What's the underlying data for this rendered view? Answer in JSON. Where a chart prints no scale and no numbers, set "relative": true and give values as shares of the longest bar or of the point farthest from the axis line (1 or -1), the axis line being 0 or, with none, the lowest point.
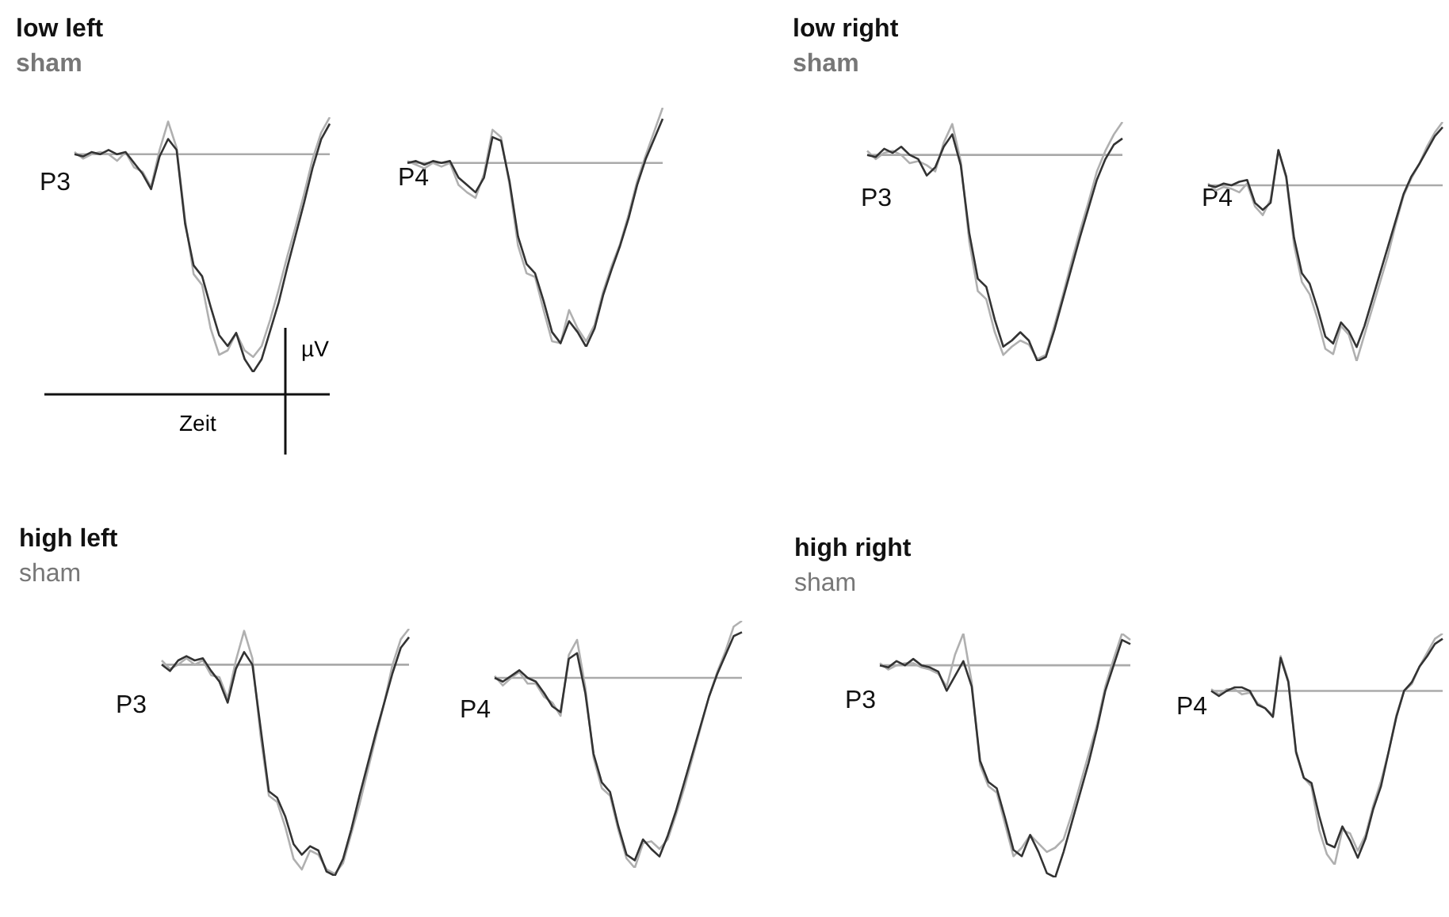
{
  "chart_data": [
    {
      "type": "line",
      "relative": true,
      "title": "low left",
      "subtitle": "sham",
      "xlabel": "Zeit",
      "ylabel": "µV",
      "annotations": [
        "P3"
      ],
      "categories": [
        null,
        null,
        null,
        null,
        null,
        null,
        null,
        null,
        null,
        null,
        null,
        null,
        null,
        null,
        null,
        null,
        null,
        null,
        null,
        null,
        null,
        null,
        null,
        null,
        null,
        null,
        null,
        null,
        null,
        null,
        null
      ],
      "series": [
        {
          "color": "#b0b0b0",
          "values": [
            0.01,
            -0.02,
            0,
            0.01,
            0,
            -0.03,
            0.01,
            -0.06,
            -0.08,
            -0.15,
            0.02,
            0.15,
            0.03,
            -0.3,
            -0.55,
            -0.6,
            -0.8,
            -0.92,
            -0.9,
            -0.82,
            -0.9,
            -0.93,
            -0.88,
            -0.76,
            -0.62,
            -0.47,
            -0.33,
            -0.18,
            -0.02,
            0.1,
            0.17
          ]
        },
        {
          "color": "#333333",
          "values": [
            0,
            -0.01,
            0.01,
            0,
            0.02,
            0,
            0.01,
            -0.04,
            -0.09,
            -0.16,
            -0.01,
            0.07,
            0.02,
            -0.32,
            -0.51,
            -0.56,
            -0.7,
            -0.83,
            -0.88,
            -0.82,
            -0.94,
            -1,
            -0.94,
            -0.81,
            -0.68,
            -0.52,
            -0.37,
            -0.22,
            -0.06,
            0.07,
            0.14
          ]
        }
      ]
    },
    {
      "type": "line",
      "relative": true,
      "annotations": [
        "P4"
      ],
      "categories": [
        null,
        null,
        null,
        null,
        null,
        null,
        null,
        null,
        null,
        null,
        null,
        null,
        null,
        null,
        null,
        null,
        null,
        null,
        null,
        null,
        null,
        null,
        null,
        null,
        null,
        null,
        null,
        null,
        null,
        null,
        null
      ],
      "series": [
        {
          "color": "#b0b0b0",
          "values": [
            0.01,
            -0.01,
            -0.03,
            0,
            -0.02,
            0,
            -0.12,
            -0.16,
            -0.19,
            -0.06,
            0.18,
            0.14,
            -0.12,
            -0.45,
            -0.6,
            -0.62,
            -0.8,
            -0.97,
            -0.98,
            -0.8,
            -0.9,
            -0.97,
            -0.88,
            -0.7,
            -0.56,
            -0.44,
            -0.28,
            -0.1,
            0.04,
            0.17,
            0.3
          ]
        },
        {
          "color": "#333333",
          "values": [
            0,
            0.01,
            -0.01,
            0.01,
            0,
            0.01,
            -0.08,
            -0.12,
            -0.16,
            -0.08,
            0.14,
            0.12,
            -0.1,
            -0.4,
            -0.55,
            -0.6,
            -0.75,
            -0.92,
            -0.98,
            -0.86,
            -0.92,
            -1,
            -0.9,
            -0.72,
            -0.58,
            -0.45,
            -0.3,
            -0.12,
            0.02,
            0.13,
            0.24
          ]
        }
      ]
    },
    {
      "type": "line",
      "relative": true,
      "title": "low right",
      "subtitle": "sham",
      "annotations": [
        "P3"
      ],
      "categories": [
        null,
        null,
        null,
        null,
        null,
        null,
        null,
        null,
        null,
        null,
        null,
        null,
        null,
        null,
        null,
        null,
        null,
        null,
        null,
        null,
        null,
        null,
        null,
        null,
        null,
        null,
        null,
        null,
        null,
        null,
        null
      ],
      "series": [
        {
          "color": "#b0b0b0",
          "values": [
            0.02,
            -0.02,
            0.01,
            0.02,
            0,
            -0.04,
            -0.03,
            -0.05,
            -0.08,
            0.06,
            0.15,
            -0.03,
            -0.42,
            -0.66,
            -0.7,
            -0.86,
            -0.97,
            -0.93,
            -0.9,
            -0.92,
            -0.99,
            -0.97,
            -0.83,
            -0.68,
            -0.52,
            -0.37,
            -0.23,
            -0.08,
            0.02,
            0.1,
            0.16
          ]
        },
        {
          "color": "#333333",
          "values": [
            0,
            -0.01,
            0.03,
            0.01,
            0.04,
            0,
            -0.02,
            -0.1,
            -0.06,
            0.04,
            0.1,
            -0.05,
            -0.38,
            -0.6,
            -0.64,
            -0.8,
            -0.93,
            -0.9,
            -0.86,
            -0.9,
            -1,
            -0.98,
            -0.85,
            -0.7,
            -0.55,
            -0.4,
            -0.26,
            -0.12,
            -0.02,
            0.05,
            0.08
          ]
        }
      ]
    },
    {
      "type": "line",
      "relative": true,
      "annotations": [
        "P4"
      ],
      "categories": [
        null,
        null,
        null,
        null,
        null,
        null,
        null,
        null,
        null,
        null,
        null,
        null,
        null,
        null,
        null,
        null,
        null,
        null,
        null,
        null,
        null,
        null,
        null,
        null,
        null,
        null,
        null,
        null,
        null,
        null,
        null
      ],
      "series": [
        {
          "color": "#b0b0b0",
          "values": [
            0.01,
            -0.03,
            -0.01,
            -0.02,
            -0.04,
            0.01,
            -0.12,
            -0.17,
            -0.08,
            0.2,
            0.04,
            -0.34,
            -0.55,
            -0.62,
            -0.76,
            -0.93,
            -0.96,
            -0.8,
            -0.85,
            -1,
            -0.85,
            -0.7,
            -0.55,
            -0.4,
            -0.22,
            -0.06,
            0.04,
            0.12,
            0.22,
            0.3,
            0.36
          ]
        },
        {
          "color": "#333333",
          "values": [
            0,
            -0.01,
            0.01,
            0,
            0.02,
            0.03,
            -0.1,
            -0.14,
            -0.1,
            0.2,
            0.05,
            -0.3,
            -0.5,
            -0.56,
            -0.7,
            -0.86,
            -0.9,
            -0.78,
            -0.83,
            -0.92,
            -0.8,
            -0.65,
            -0.5,
            -0.35,
            -0.2,
            -0.05,
            0.05,
            0.12,
            0.2,
            0.28,
            0.33
          ]
        }
      ]
    },
    {
      "type": "line",
      "relative": true,
      "title": "high left",
      "subtitle": "sham",
      "annotations": [
        "P3"
      ],
      "categories": [
        null,
        null,
        null,
        null,
        null,
        null,
        null,
        null,
        null,
        null,
        null,
        null,
        null,
        null,
        null,
        null,
        null,
        null,
        null,
        null,
        null,
        null,
        null,
        null,
        null,
        null,
        null,
        null,
        null,
        null,
        null
      ],
      "series": [
        {
          "color": "#b0b0b0",
          "values": [
            0.02,
            -0.02,
            0,
            0.03,
            0,
            0.02,
            -0.05,
            -0.06,
            -0.16,
            0.02,
            0.16,
            0.03,
            -0.34,
            -0.62,
            -0.65,
            -0.77,
            -0.92,
            -0.97,
            -0.88,
            -0.9,
            -0.97,
            -0.99,
            -0.94,
            -0.8,
            -0.66,
            -0.5,
            -0.34,
            -0.18,
            0,
            0.12,
            0.17
          ]
        },
        {
          "color": "#333333",
          "values": [
            0,
            -0.03,
            0.02,
            0.04,
            0.02,
            0.03,
            -0.03,
            -0.08,
            -0.18,
            -0.02,
            0.06,
            0,
            -0.3,
            -0.6,
            -0.63,
            -0.72,
            -0.85,
            -0.9,
            -0.86,
            -0.88,
            -0.98,
            -1,
            -0.92,
            -0.78,
            -0.62,
            -0.47,
            -0.32,
            -0.18,
            -0.04,
            0.08,
            0.13
          ]
        }
      ]
    },
    {
      "type": "line",
      "relative": true,
      "annotations": [
        "P4"
      ],
      "categories": [
        null,
        null,
        null,
        null,
        null,
        null,
        null,
        null,
        null,
        null,
        null,
        null,
        null,
        null,
        null,
        null,
        null,
        null,
        null,
        null,
        null,
        null,
        null,
        null,
        null,
        null,
        null,
        null,
        null,
        null,
        null
      ],
      "series": [
        {
          "color": "#b0b0b0",
          "values": [
            0.01,
            -0.04,
            0,
            0.03,
            -0.03,
            -0.03,
            -0.1,
            -0.13,
            -0.2,
            0.12,
            0.2,
            -0.05,
            -0.42,
            -0.58,
            -0.62,
            -0.8,
            -0.95,
            -1,
            -0.87,
            -0.86,
            -0.9,
            -0.85,
            -0.72,
            -0.58,
            -0.42,
            -0.26,
            -0.1,
            0.03,
            0.14,
            0.27,
            0.3
          ]
        },
        {
          "color": "#333333",
          "values": [
            0,
            -0.02,
            0.01,
            0.04,
            0,
            -0.02,
            -0.08,
            -0.15,
            -0.18,
            0.1,
            0.13,
            -0.08,
            -0.4,
            -0.55,
            -0.6,
            -0.78,
            -0.93,
            -0.96,
            -0.85,
            -0.9,
            -0.94,
            -0.83,
            -0.7,
            -0.55,
            -0.4,
            -0.25,
            -0.1,
            0.02,
            0.12,
            0.22,
            0.24
          ]
        }
      ]
    },
    {
      "type": "line",
      "relative": true,
      "title": "high right",
      "subtitle": "sham",
      "annotations": [
        "P3"
      ],
      "categories": [
        null,
        null,
        null,
        null,
        null,
        null,
        null,
        null,
        null,
        null,
        null,
        null,
        null,
        null,
        null,
        null,
        null,
        null,
        null,
        null,
        null,
        null,
        null,
        null,
        null,
        null,
        null,
        null,
        null,
        null,
        null
      ],
      "series": [
        {
          "color": "#b0b0b0",
          "values": [
            0.01,
            -0.02,
            0,
            0.01,
            0.01,
            -0.01,
            -0.02,
            -0.04,
            -0.1,
            0.05,
            0.15,
            -0.08,
            -0.47,
            -0.57,
            -0.6,
            -0.75,
            -0.9,
            -0.86,
            -0.8,
            -0.84,
            -0.88,
            -0.86,
            -0.82,
            -0.7,
            -0.56,
            -0.42,
            -0.28,
            -0.1,
            0.03,
            0.15,
            0.12
          ]
        },
        {
          "color": "#333333",
          "values": [
            0,
            -0.01,
            0.02,
            0,
            0.03,
            0,
            -0.01,
            -0.03,
            -0.12,
            -0.05,
            0.02,
            -0.1,
            -0.45,
            -0.55,
            -0.58,
            -0.72,
            -0.87,
            -0.9,
            -0.8,
            -0.88,
            -0.98,
            -1,
            -0.88,
            -0.74,
            -0.6,
            -0.46,
            -0.3,
            -0.12,
            0,
            0.12,
            0.1
          ]
        }
      ]
    },
    {
      "type": "line",
      "relative": true,
      "annotations": [
        "P4"
      ],
      "categories": [
        null,
        null,
        null,
        null,
        null,
        null,
        null,
        null,
        null,
        null,
        null,
        null,
        null,
        null,
        null,
        null,
        null,
        null,
        null,
        null,
        null,
        null,
        null,
        null,
        null,
        null,
        null,
        null,
        null,
        null,
        null
      ],
      "series": [
        {
          "color": "#b0b0b0",
          "values": [
            0.01,
            -0.02,
            0.01,
            0.01,
            -0.02,
            -0.01,
            -0.07,
            -0.1,
            -0.14,
            0.2,
            0.06,
            -0.36,
            -0.5,
            -0.55,
            -0.8,
            -0.94,
            -1,
            -0.8,
            -0.82,
            -0.92,
            -0.83,
            -0.66,
            -0.52,
            -0.35,
            -0.14,
            0,
            0.04,
            0.14,
            0.22,
            0.3,
            0.33
          ]
        },
        {
          "color": "#333333",
          "values": [
            0,
            -0.03,
            0,
            0.02,
            0.02,
            0,
            -0.08,
            -0.1,
            -0.15,
            0.19,
            0.05,
            -0.35,
            -0.5,
            -0.53,
            -0.72,
            -0.88,
            -0.9,
            -0.78,
            -0.86,
            -0.96,
            -0.85,
            -0.68,
            -0.55,
            -0.35,
            -0.15,
            0,
            0.05,
            0.14,
            0.2,
            0.27,
            0.3
          ]
        }
      ]
    }
  ]
}
